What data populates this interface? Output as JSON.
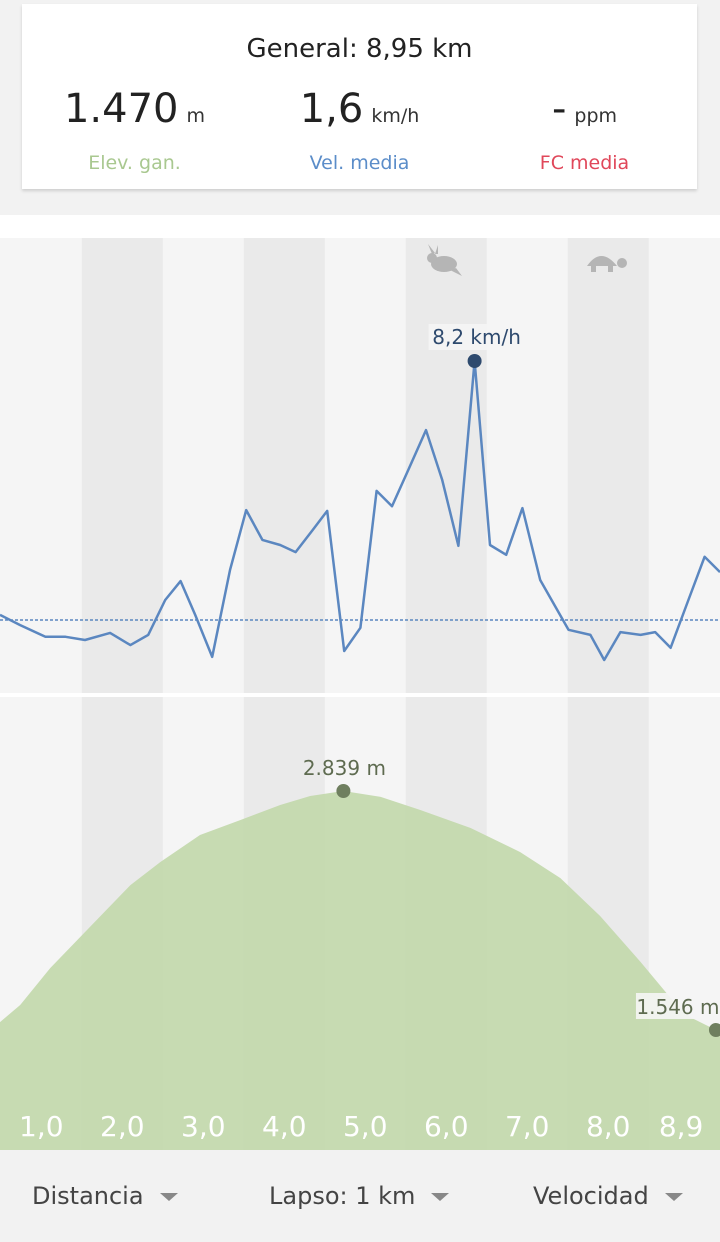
{
  "summary": {
    "title": "General: 8,95 km",
    "stats": [
      {
        "value": "1.470",
        "unit": "m",
        "label": "Elev. gan."
      },
      {
        "value": "1,6",
        "unit": "km/h",
        "label": "Vel. media"
      },
      {
        "value": "-",
        "unit": "ppm",
        "label": "FC media"
      }
    ]
  },
  "chart_data": [
    {
      "type": "line",
      "color": "#5b87c0",
      "x": [
        0.49,
        0.74,
        1.05,
        1.3,
        1.54,
        1.85,
        2.1,
        2.32,
        2.53,
        2.72,
        2.9,
        3.11,
        3.33,
        3.53,
        3.73,
        3.95,
        4.14,
        4.35,
        4.53,
        4.74,
        4.94,
        5.14,
        5.33,
        5.53,
        5.75,
        5.95,
        6.15,
        6.35,
        6.54,
        6.74,
        6.94,
        7.16,
        7.51,
        7.78,
        7.95,
        8.15,
        8.4,
        8.58,
        8.77,
        8.99,
        9.19,
        9.38
      ],
      "values": [
        1.73,
        1.47,
        1.17,
        1.17,
        1.09,
        1.27,
        0.96,
        1.22,
        2.11,
        2.59,
        1.73,
        0.66,
        2.87,
        4.4,
        3.64,
        3.51,
        3.33,
        3.89,
        4.38,
        0.81,
        1.4,
        4.89,
        4.5,
        5.42,
        6.44,
        5.17,
        3.49,
        8.2,
        3.51,
        3.26,
        4.45,
        2.62,
        1.35,
        1.22,
        0.58,
        1.29,
        1.22,
        1.29,
        0.89,
        2.11,
        3.21,
        2.82
      ],
      "value_labels": [
        null,
        null,
        null,
        null,
        null,
        null,
        null,
        null,
        null,
        null,
        null,
        null,
        null,
        null,
        null,
        null,
        null,
        null,
        null,
        null,
        null,
        null,
        null,
        null,
        null,
        null,
        null,
        "8,2 km/h",
        null,
        null,
        null,
        null,
        null,
        null,
        null,
        null,
        null,
        null,
        null,
        null,
        null,
        null
      ],
      "average": 1.6
    },
    {
      "type": "area",
      "color": "#c2d8ab",
      "x": [
        0.49,
        0.74,
        1.11,
        1.6,
        2.1,
        2.47,
        2.96,
        3.46,
        3.95,
        4.32,
        4.73,
        5.19,
        5.68,
        6.3,
        6.91,
        7.41,
        7.9,
        8.4,
        8.77,
        9.01,
        9.33
      ],
      "values": [
        1589,
        1681,
        1881,
        2103,
        2330,
        2455,
        2601,
        2682,
        2763,
        2812,
        2839,
        2807,
        2736,
        2639,
        2509,
        2368,
        2163,
        1914,
        1719,
        1616,
        1546
      ],
      "value_labels": [
        null,
        null,
        null,
        null,
        null,
        null,
        null,
        null,
        null,
        null,
        "2.839 m",
        null,
        null,
        null,
        null,
        null,
        null,
        null,
        null,
        null,
        "1.546 m"
      ],
      "xticks": [
        {
          "value": 1,
          "label": "1,0"
        },
        {
          "value": 2,
          "label": "2,0"
        },
        {
          "value": 3,
          "label": "3,0"
        },
        {
          "value": 4,
          "label": "4,0"
        },
        {
          "value": 5,
          "label": "5,0"
        },
        {
          "value": 6,
          "label": "6,0"
        },
        {
          "value": 7,
          "label": "7,0"
        },
        {
          "value": 8,
          "label": "8,0"
        },
        {
          "value": 8.9,
          "label": "8,9"
        }
      ]
    }
  ],
  "controls": [
    "Distancia",
    "Lapso: 1 km",
    "Velocidad"
  ]
}
